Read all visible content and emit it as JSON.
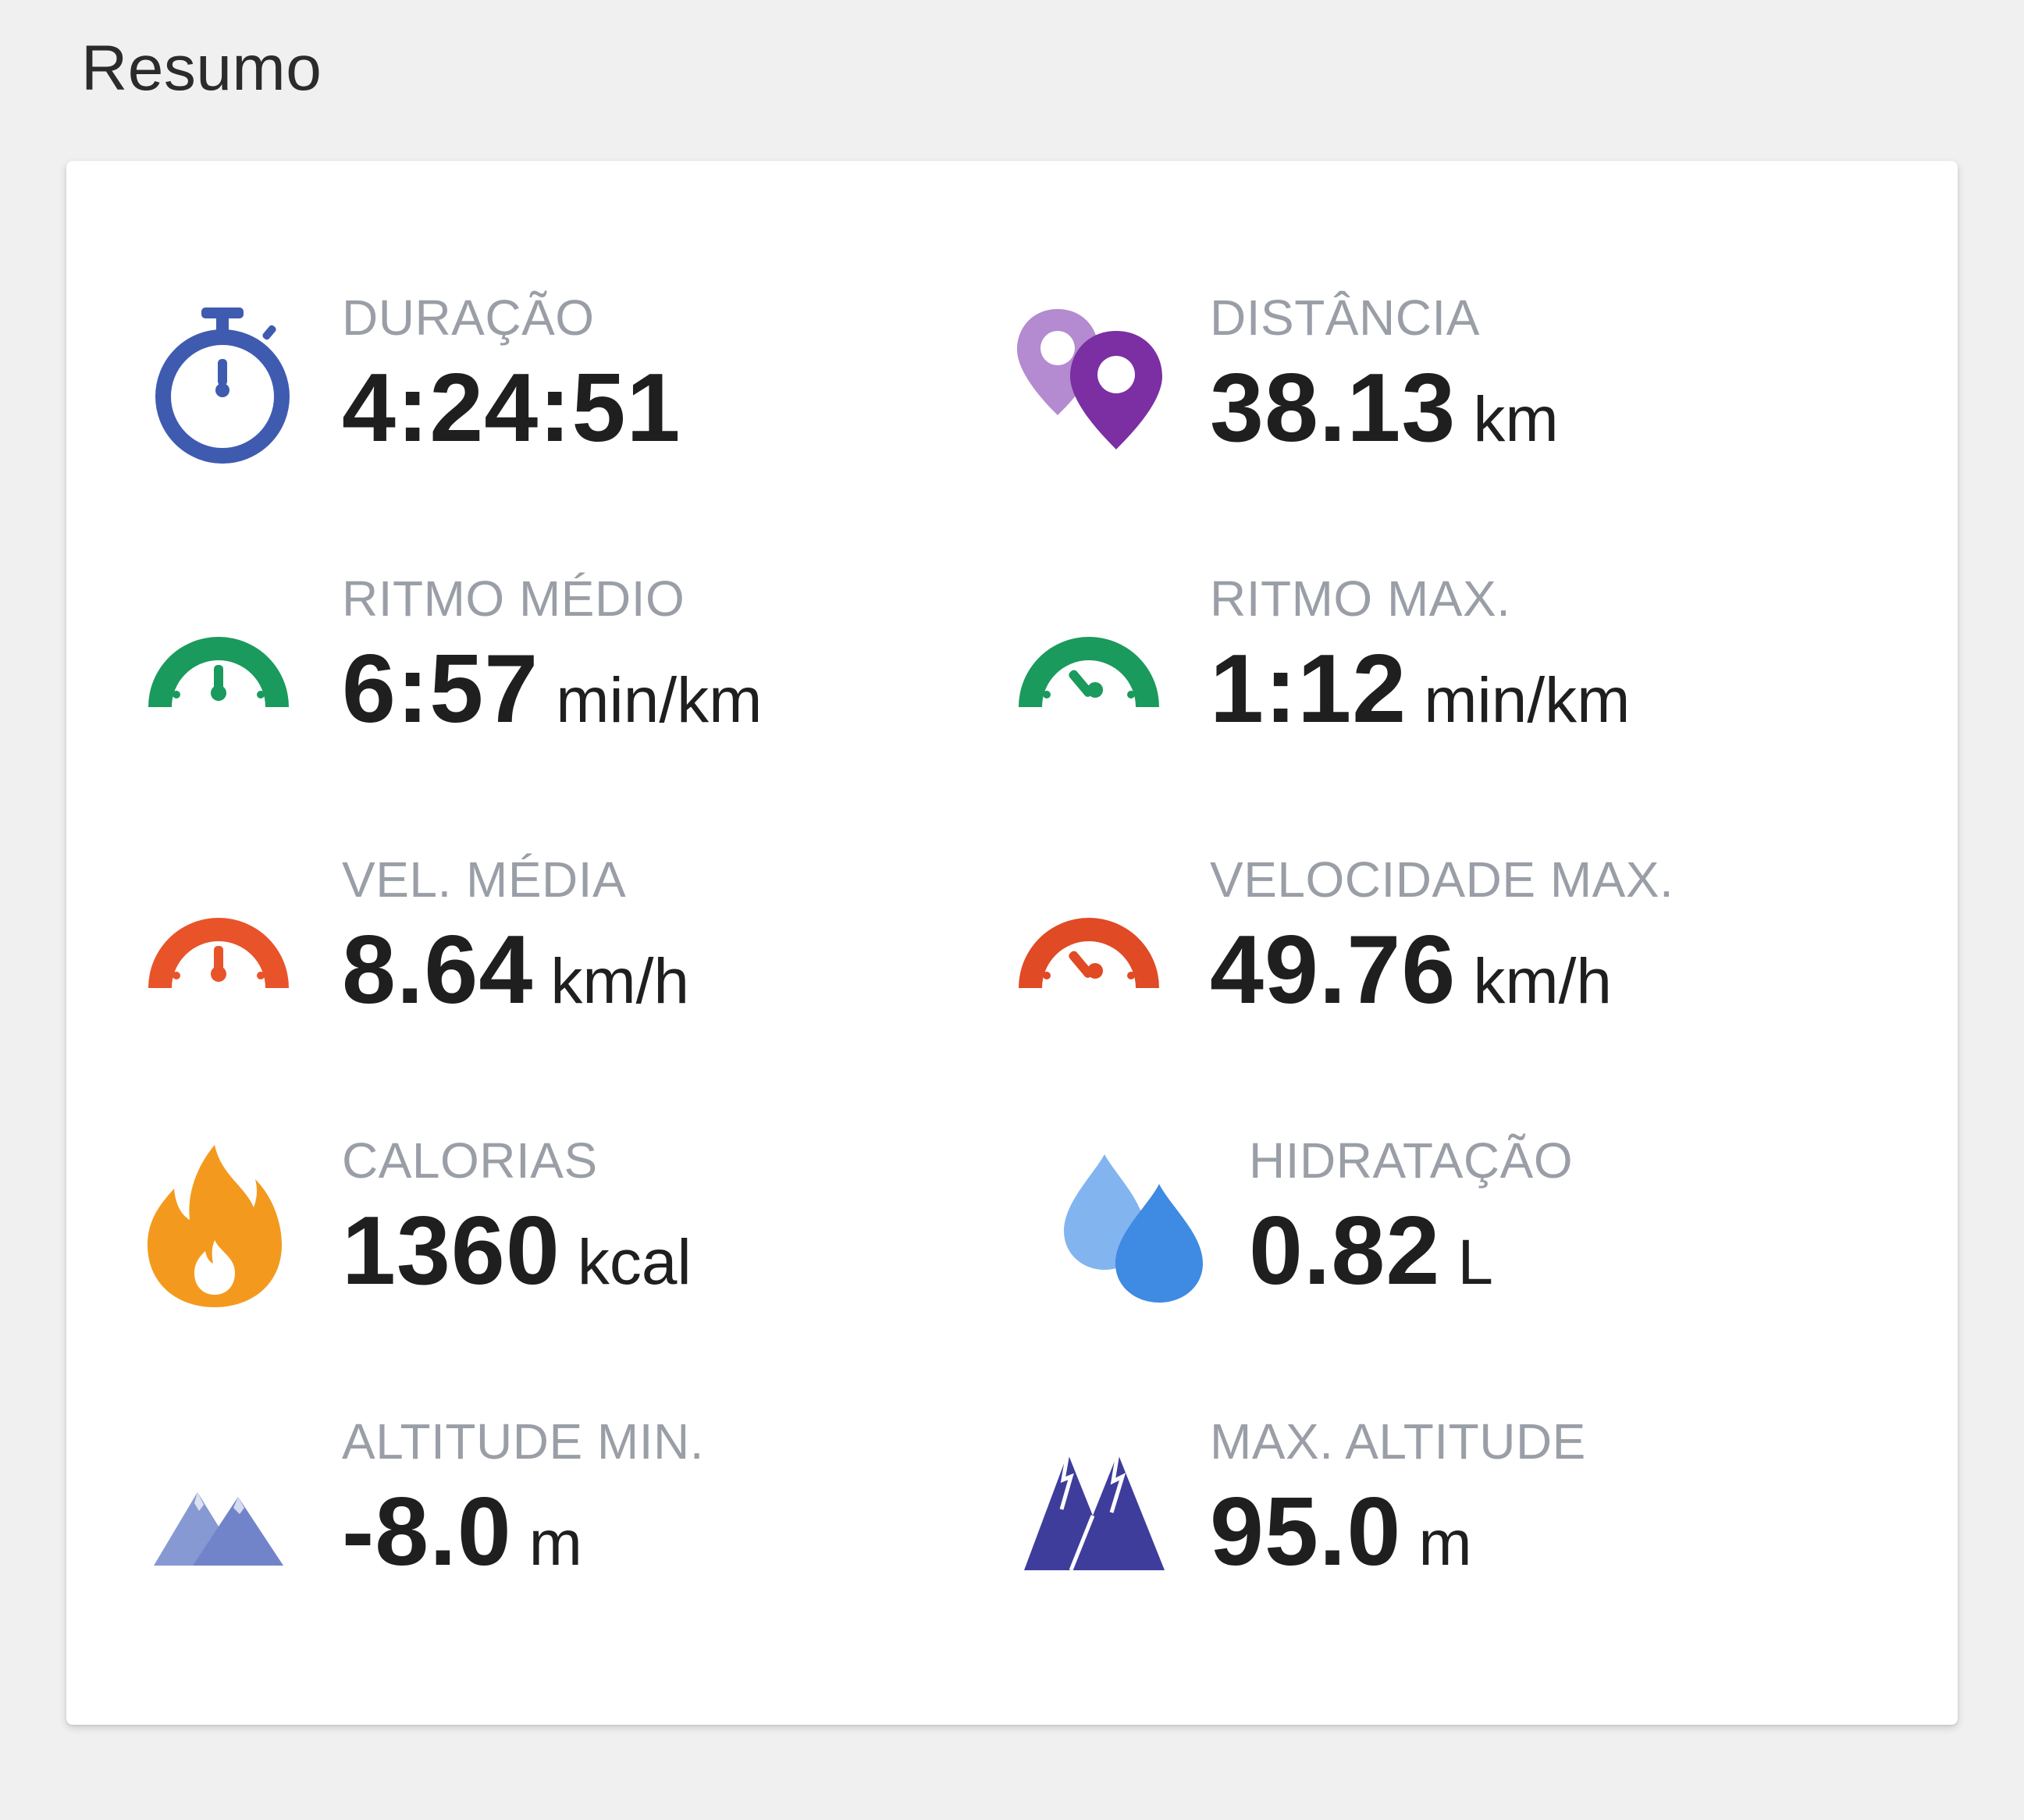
{
  "section_title": "Resumo",
  "metrics": {
    "duration": {
      "label": "DURAÇÃO",
      "value": "4:24:51",
      "unit": "",
      "icon": "stopwatch-icon",
      "color": "#3f5bb0"
    },
    "distance": {
      "label": "DISTÂNCIA",
      "value": "38.13",
      "unit": "km",
      "icon": "map-pins-icon",
      "color": "#7b2fa3"
    },
    "avg_pace": {
      "label": "RITMO MÉDIO",
      "value": "6:57",
      "unit": "min/km",
      "icon": "pace-gauge-icon",
      "color": "#1a9a5c"
    },
    "max_pace": {
      "label": "RITMO MAX.",
      "value": "1:12",
      "unit": "min/km",
      "icon": "pace-gauge-icon",
      "color": "#1a9a5c"
    },
    "avg_speed": {
      "label": "VEL. MÉDIA",
      "value": "8.64",
      "unit": "km/h",
      "icon": "speed-gauge-icon",
      "color": "#e8532a"
    },
    "max_speed": {
      "label": "VELOCIDADE MAX.",
      "value": "49.76",
      "unit": "km/h",
      "icon": "speed-gauge-icon",
      "color": "#e04a24"
    },
    "calories": {
      "label": "CALORIAS",
      "value": "1360",
      "unit": "kcal",
      "icon": "flame-icon",
      "color": "#f39a1e"
    },
    "hydration": {
      "label": "HIDRATAÇÃO",
      "value": "0.82",
      "unit": "L",
      "icon": "water-drops-icon",
      "color": "#4a90e2"
    },
    "min_altitude": {
      "label": "ALTITUDE MIN.",
      "value": "-8.0",
      "unit": "m",
      "icon": "mountains-low-icon",
      "color": "#7a8fd0"
    },
    "max_altitude": {
      "label": "MAX. ALTITUDE",
      "value": "95.0",
      "unit": "m",
      "icon": "mountains-high-icon",
      "color": "#3e3d9c"
    }
  }
}
